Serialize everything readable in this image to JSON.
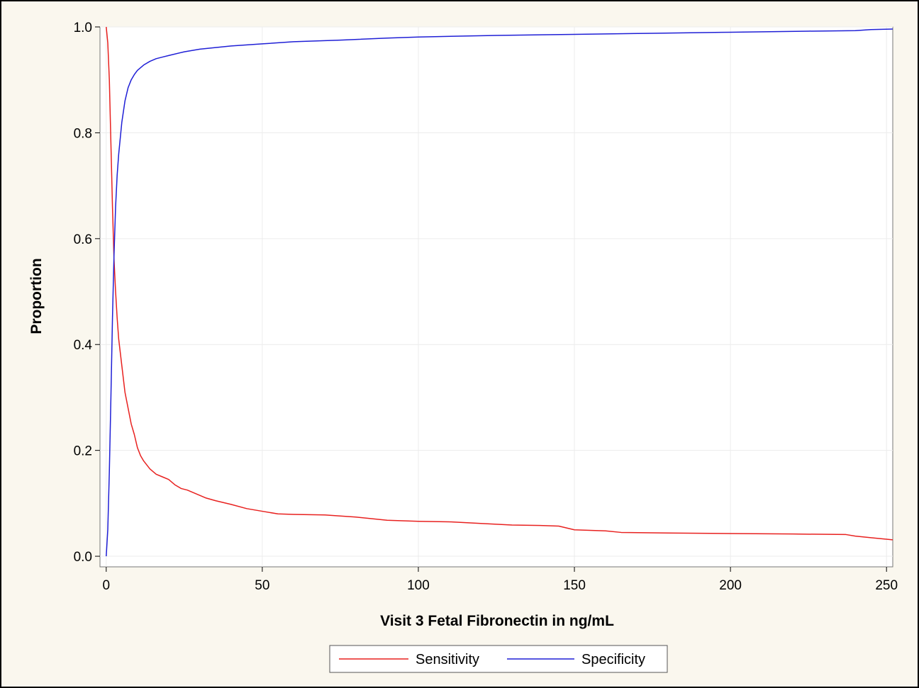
{
  "chart_data": {
    "type": "line",
    "title": "",
    "xlabel": "Visit 3 Fetal Fibronectin in ng/mL",
    "ylabel": "Proportion",
    "xlim": [
      -2,
      252
    ],
    "ylim": [
      -0.02,
      1.0
    ],
    "x_ticks": [
      0,
      50,
      100,
      150,
      200,
      250
    ],
    "y_ticks": [
      0.0,
      0.2,
      0.4,
      0.6,
      0.8,
      1.0
    ],
    "x_tick_labels": [
      "0",
      "50",
      "100",
      "150",
      "200",
      "250"
    ],
    "y_tick_labels": [
      "0.0",
      "0.2",
      "0.4",
      "0.6",
      "0.8",
      "1.0"
    ],
    "grid": true,
    "legend_position": "bottom",
    "series": [
      {
        "name": "Sensitivity",
        "color": "#e8211f",
        "x": [
          0,
          0.5,
          1,
          1.5,
          2,
          2.5,
          3,
          3.5,
          4,
          5,
          6,
          7,
          8,
          9,
          10,
          11,
          12,
          14,
          16,
          18,
          20,
          22,
          24,
          26,
          28,
          30,
          32,
          35,
          40,
          45,
          50,
          55,
          60,
          70,
          80,
          90,
          100,
          110,
          120,
          130,
          140,
          145,
          150,
          160,
          165,
          180,
          200,
          220,
          237,
          240,
          245,
          252
        ],
        "y": [
          1.0,
          0.97,
          0.9,
          0.78,
          0.66,
          0.56,
          0.5,
          0.45,
          0.41,
          0.36,
          0.31,
          0.28,
          0.25,
          0.23,
          0.205,
          0.19,
          0.18,
          0.165,
          0.155,
          0.15,
          0.145,
          0.135,
          0.128,
          0.125,
          0.12,
          0.115,
          0.11,
          0.105,
          0.098,
          0.09,
          0.085,
          0.08,
          0.079,
          0.078,
          0.074,
          0.068,
          0.066,
          0.065,
          0.062,
          0.059,
          0.058,
          0.057,
          0.05,
          0.048,
          0.045,
          0.044,
          0.043,
          0.042,
          0.041,
          0.038,
          0.035,
          0.031
        ]
      },
      {
        "name": "Specificity",
        "color": "#1f1fd6",
        "x": [
          0,
          0.5,
          1,
          1.5,
          2,
          2.5,
          3,
          3.5,
          4,
          5,
          6,
          7,
          8,
          9,
          10,
          12,
          14,
          16,
          18,
          20,
          25,
          30,
          35,
          40,
          50,
          60,
          75,
          90,
          100,
          125,
          150,
          175,
          200,
          225,
          240,
          245,
          252
        ],
        "y": [
          0.0,
          0.05,
          0.16,
          0.3,
          0.45,
          0.57,
          0.66,
          0.72,
          0.76,
          0.82,
          0.86,
          0.885,
          0.9,
          0.91,
          0.918,
          0.928,
          0.935,
          0.94,
          0.943,
          0.946,
          0.953,
          0.958,
          0.961,
          0.964,
          0.968,
          0.972,
          0.975,
          0.979,
          0.981,
          0.984,
          0.986,
          0.988,
          0.99,
          0.992,
          0.993,
          0.995,
          0.996
        ]
      }
    ]
  }
}
